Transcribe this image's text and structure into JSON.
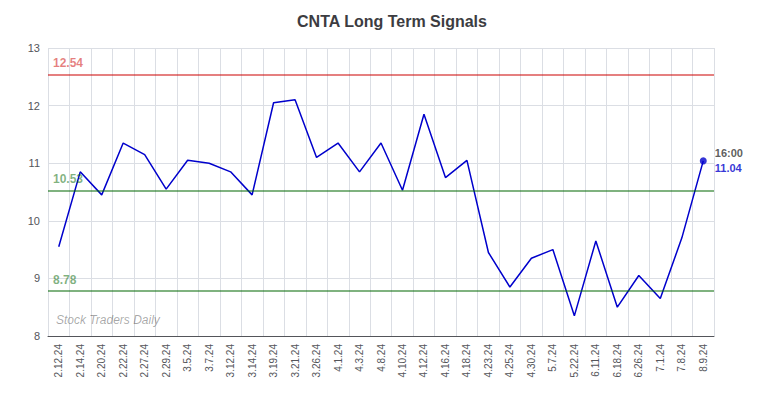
{
  "chart_data": {
    "type": "line",
    "title": "CNTA Long Term Signals",
    "categories": [
      "2.12.24",
      "2.14.24",
      "2.20.24",
      "2.22.24",
      "2.27.24",
      "2.29.24",
      "3.5.24",
      "3.7.24",
      "3.12.24",
      "3.14.24",
      "3.19.24",
      "3.21.24",
      "3.26.24",
      "4.1.24",
      "4.3.24",
      "4.8.24",
      "4.10.24",
      "4.12.24",
      "4.16.24",
      "4.18.24",
      "4.23.24",
      "4.25.24",
      "4.30.24",
      "5.7.24",
      "5.22.24",
      "6.11.24",
      "6.18.24",
      "6.26.24",
      "7.1.24",
      "7.8.24",
      "8.9.24"
    ],
    "values": [
      9.55,
      10.85,
      10.45,
      11.35,
      11.15,
      10.55,
      11.05,
      11.0,
      10.85,
      10.45,
      12.05,
      12.1,
      11.1,
      11.35,
      10.85,
      11.35,
      10.53,
      11.85,
      10.75,
      11.05,
      9.45,
      8.85,
      9.35,
      9.5,
      8.35,
      9.65,
      8.5,
      9.05,
      8.65,
      9.7,
      11.04
    ],
    "color": "#0000CC",
    "ylim": [
      8,
      13
    ],
    "yticks": [
      8,
      9,
      10,
      11,
      12,
      13
    ],
    "grid": true,
    "hlines": [
      {
        "value": 12.54,
        "label": "12.54",
        "color": "#CC0000"
      },
      {
        "value": 10.53,
        "label": "10.53",
        "color": "#006600"
      },
      {
        "value": 8.78,
        "label": "8.78",
        "color": "#006600"
      }
    ],
    "annotations": [
      {
        "category": "8.9.24",
        "value": 11.04,
        "text": "16:00"
      },
      {
        "category": "8.9.24",
        "value": 11.04,
        "text": "11.04"
      }
    ],
    "watermark": "Stock Traders Daily"
  }
}
